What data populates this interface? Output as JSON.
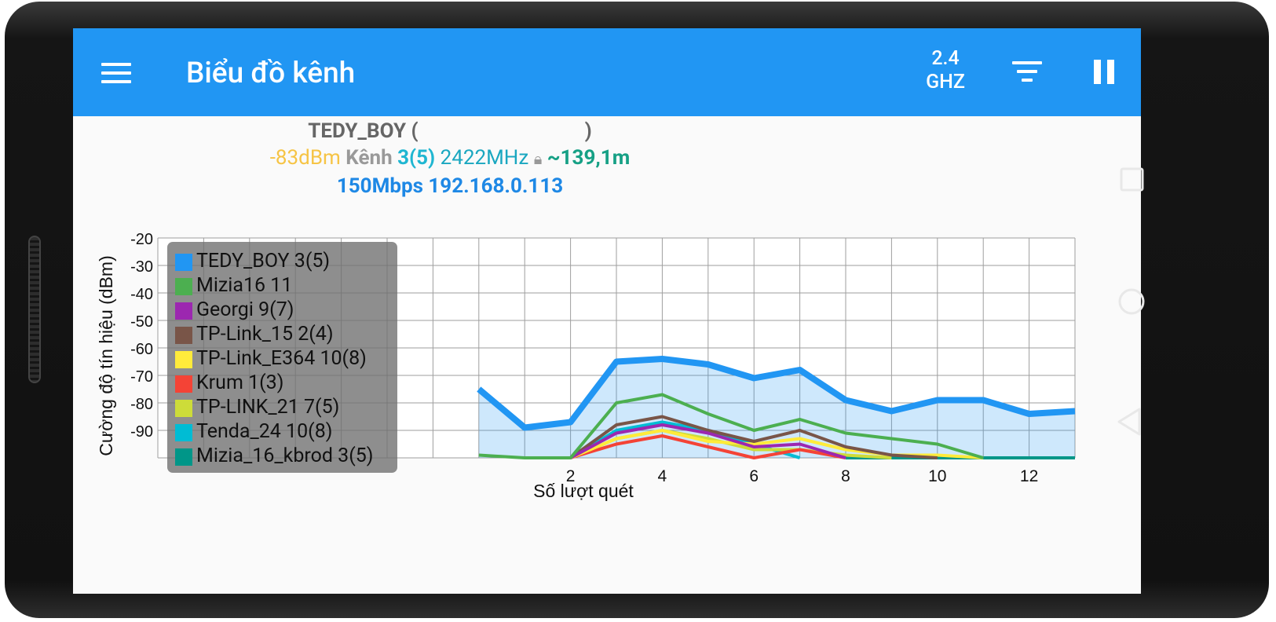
{
  "appbar": {
    "title": "Biểu đồ kênh",
    "band_line1": "2.4",
    "band_line2": "GHZ",
    "menu_icon": "hamburger-menu-icon",
    "filter_icon": "filter-icon",
    "pause_icon": "pause-icon"
  },
  "connection": {
    "ssid": "TEDY_BOY",
    "open_paren": "(",
    "close_paren": ")",
    "level": "-83dBm",
    "channel_label": "Kênh",
    "channel": "3(5)",
    "frequency": "2422MHz",
    "distance": "~139,1m",
    "link": "150Mbps 192.168.0.113"
  },
  "colors": {
    "appbar": "#2196f3",
    "level": "#f6c445",
    "channel": "#1fb6d1",
    "distance": "#16a085",
    "link": "#1e88e5"
  },
  "chart_data": {
    "type": "line",
    "xlabel": "Số lượt quét",
    "ylabel": "Cường độ tín hiệu (dBm)",
    "xlim": [
      -7,
      13
    ],
    "ylim": [
      -100,
      -20
    ],
    "x_ticks": [
      2,
      4,
      6,
      8,
      10,
      12
    ],
    "y_ticks": [
      -20,
      -30,
      -40,
      -50,
      -60,
      -70,
      -80,
      -90
    ],
    "grid": true,
    "legend_position": "top-left",
    "series": [
      {
        "name": "TEDY_BOY 3(5)",
        "color": "#2196f3",
        "filled": true,
        "x": [
          0,
          1,
          2,
          3,
          4,
          5,
          6,
          7,
          8,
          9,
          10,
          11,
          12,
          13
        ],
        "y": [
          -75,
          -89,
          -87,
          -65,
          -64,
          -66,
          -71,
          -68,
          -79,
          -83,
          -79,
          -79,
          -84,
          -83
        ]
      },
      {
        "name": "Mizia16 11",
        "color": "#4caf50",
        "x": [
          0,
          1,
          2,
          3,
          4,
          5,
          6,
          7,
          8,
          9,
          10,
          11
        ],
        "y": [
          -99,
          -100,
          -100,
          -80,
          -77,
          -84,
          -90,
          -86,
          -91,
          -93,
          -95,
          -100
        ]
      },
      {
        "name": "Georgi 9(7)",
        "color": "#9c27b0",
        "x": [
          2,
          3,
          4,
          5,
          6,
          7,
          8
        ],
        "y": [
          -100,
          -91,
          -88,
          -91,
          -96,
          -95,
          -100
        ]
      },
      {
        "name": "TP-Link_15 2(4)",
        "color": "#795548",
        "x": [
          2,
          3,
          4,
          5,
          6,
          7,
          8,
          9,
          10
        ],
        "y": [
          -100,
          -88,
          -85,
          -90,
          -94,
          -90,
          -96,
          -99,
          -100
        ]
      },
      {
        "name": "TP-Link_E364 10(8)",
        "color": "#ffeb3b",
        "x": [
          2,
          3,
          4,
          5,
          6,
          7,
          8,
          9,
          10,
          11
        ],
        "y": [
          -100,
          -93,
          -90,
          -94,
          -95,
          -93,
          -97,
          -99,
          -99,
          -100
        ]
      },
      {
        "name": "Krum 1(3)",
        "color": "#f44336",
        "x": [
          2,
          3,
          4,
          5,
          6,
          7,
          8
        ],
        "y": [
          -100,
          -95,
          -92,
          -96,
          -100,
          -97,
          -100
        ]
      },
      {
        "name": "TP-LINK_21 7(5)",
        "color": "#cddc39",
        "x": [
          2,
          3,
          4,
          5,
          6,
          7,
          8,
          9
        ],
        "y": [
          -100,
          -93,
          -90,
          -93,
          -97,
          -97,
          -99,
          -100
        ]
      },
      {
        "name": "Tenda_24 10(8)",
        "color": "#00bcd4",
        "x": [
          2,
          3,
          4,
          5,
          6,
          7
        ],
        "y": [
          -100,
          -90,
          -87,
          -90,
          -95,
          -100
        ]
      },
      {
        "name": "Mizia_16_kbrod 3(5)",
        "color": "#009688",
        "x": [
          8,
          9,
          10,
          11,
          12,
          13
        ],
        "y": [
          -100,
          -100,
          -100,
          -100,
          -100,
          -100
        ]
      }
    ]
  },
  "navbar": {
    "recent_icon": "recent-apps-square-icon",
    "home_icon": "home-circle-icon",
    "back_icon": "back-triangle-icon"
  }
}
